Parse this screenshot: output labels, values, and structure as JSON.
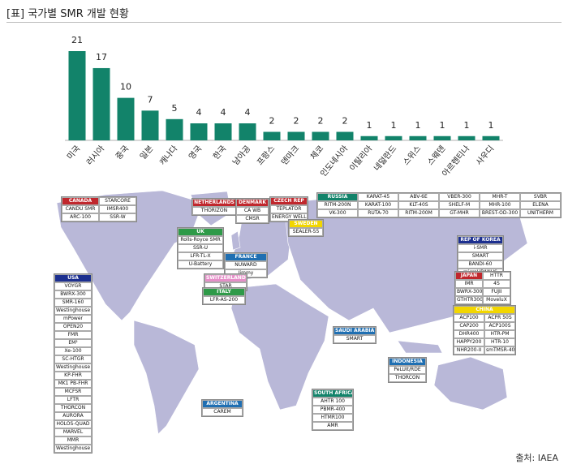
{
  "title": "[표] 국가별 SMR 개발 현황",
  "source": "출처: IAEA",
  "chart_data": {
    "type": "bar",
    "categories": [
      "미국",
      "러시아",
      "중국",
      "일본",
      "캐나다",
      "영국",
      "한국",
      "남아공",
      "프랑스",
      "덴마크",
      "체코",
      "인도네시아",
      "이탈리아",
      "네덜란드",
      "스위스",
      "스웨덴",
      "아르헨티나",
      "사우디"
    ],
    "values": [
      21,
      17,
      10,
      7,
      5,
      4,
      4,
      4,
      2,
      2,
      2,
      2,
      1,
      1,
      1,
      1,
      1,
      1
    ],
    "color": "#12836a"
  },
  "map": {
    "groups": [
      {
        "name": "CANADA",
        "color": "#c0272d",
        "items": [
          "STARCORE",
          "CANDU SMR",
          "IMSR400",
          "ARC-100",
          "SSR-W"
        ]
      },
      {
        "name": "NETHERLANDS",
        "color": "#c0272d",
        "items": [
          "THORIZON"
        ]
      },
      {
        "name": "DENMARK",
        "color": "#c0272d",
        "items": [
          "CA WB",
          "CMSR"
        ]
      },
      {
        "name": "CZECH REP",
        "color": "#c0272d",
        "items": [
          "TEPLATOR",
          "ENERGY WELL"
        ]
      },
      {
        "name": "RUSSIA",
        "color": "#12836a",
        "items": [
          "KARAT-45",
          "ABV-6E",
          "VBER-300",
          "MHR-T",
          "SVBR",
          "RITM-200N",
          "KARAT-100",
          "KLT-40S",
          "SHELF-M",
          "MHR-100",
          "ELENA",
          "VK-300",
          "RUTA-70",
          "RITM-200M",
          "GT-MHR",
          "BREST-OD-300",
          "UNITHERM"
        ]
      },
      {
        "name": "SWEDEN",
        "color": "#f2d600",
        "items": [
          "SEALER-55"
        ]
      },
      {
        "name": "UK",
        "color": "#2e9a48",
        "items": [
          "Rolls-Royce SMR",
          "SSR-U",
          "LFR-TL-X",
          "U-Battery"
        ]
      },
      {
        "name": "FRANCE",
        "color": "#1f6fb2",
        "items": [
          "NUWARD",
          "Jimmy"
        ]
      },
      {
        "name": "SWITZERLAND",
        "color": "#e58fc8",
        "items": [
          "STAR"
        ]
      },
      {
        "name": "ITALY",
        "color": "#2e9a48",
        "items": [
          "LFR-AS-200"
        ]
      },
      {
        "name": "REP OF KOREA",
        "color": "#1c2f8f",
        "items": [
          "i-SMR",
          "SMART",
          "BANDI-60",
          "microURANUS"
        ]
      },
      {
        "name": "JAPAN",
        "color": "#c0272d",
        "items": [
          "HTTR",
          "IMR",
          "4S",
          "BWRX-300",
          "FUJII",
          "GTHTR300",
          "MoveluX"
        ]
      },
      {
        "name": "CHINA",
        "color": "#f2d600",
        "items": [
          "ACP100",
          "ACPR 50S",
          "CAP200",
          "ACP100S",
          "DHR400",
          "HTR-PM",
          "HAPPY200",
          "HTR-10",
          "NHR200-II",
          "smTMSR-400"
        ]
      },
      {
        "name": "USA",
        "color": "#1c2f8f",
        "items": [
          "VOYGR",
          "BWRX-300",
          "SMR-160",
          "Westinghouse SMR",
          "mPower",
          "OPEN20",
          "FMR",
          "EM²",
          "Xe-100",
          "SC-HTGR",
          "Westinghouse LFR",
          "KP-FHR",
          "MK1 PB-FHR",
          "MCFSR",
          "LFTR",
          "THORCON",
          "AURORA",
          "HOLOS-QUAD",
          "MARVEL",
          "MMR",
          "Westinghouse eVinci"
        ]
      },
      {
        "name": "SAUDI ARABIA",
        "color": "#1f6fb2",
        "items": [
          "SMART"
        ]
      },
      {
        "name": "INDONESIA",
        "color": "#1f6fb2",
        "items": [
          "PeLUIt/RDE",
          "THORCON"
        ]
      },
      {
        "name": "ARGENTINA",
        "color": "#1f6fb2",
        "items": [
          "CAREM"
        ]
      },
      {
        "name": "SOUTH AFRICA",
        "color": "#12836a",
        "items": [
          "AHTR 100",
          "PBMR-400",
          "HTMR100",
          "AMR"
        ]
      }
    ]
  }
}
